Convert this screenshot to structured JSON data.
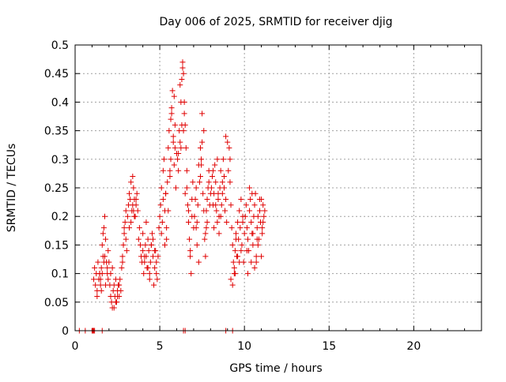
{
  "chart_data": {
    "type": "scatter",
    "title": "Day 006 of 2025, SRMTID for receiver djig",
    "xlabel": "GPS time / hours",
    "ylabel": "SRMTID / TECUs",
    "xlim": [
      0,
      24
    ],
    "ylim": [
      0,
      0.5
    ],
    "xticks": [
      "0",
      "5",
      "10",
      "15",
      "20"
    ],
    "yticks": [
      "0",
      "0.05",
      "0.1",
      "0.15",
      "0.2",
      "0.25",
      "0.3",
      "0.35",
      "0.4",
      "0.45",
      "0.5"
    ],
    "grid": true,
    "marker": "plus",
    "color": "#e00000",
    "series": [
      {
        "x": [
          0.25,
          0.6,
          1.0,
          1.05,
          1.1,
          1.15,
          1.6,
          6.4,
          6.5,
          8.9,
          9.3,
          1.1,
          1.15,
          1.2,
          1.25,
          1.3,
          1.35,
          1.4,
          1.45,
          1.5,
          1.55,
          1.6,
          1.65,
          1.7,
          1.75,
          1.8,
          1.85,
          1.9,
          1.95,
          1.3,
          1.5,
          1.7,
          1.9,
          1.6,
          1.8,
          1.55,
          1.75,
          1.95,
          1.45,
          1.65,
          2.0,
          2.05,
          2.1,
          2.15,
          2.2,
          2.25,
          2.3,
          2.35,
          2.4,
          2.45,
          2.5,
          2.55,
          2.6,
          2.65,
          2.7,
          2.1,
          2.3,
          2.5,
          2.2,
          2.4,
          2.6,
          2.75,
          2.8,
          2.85,
          2.9,
          2.95,
          3.0,
          3.05,
          3.1,
          2.8,
          2.9,
          3.0,
          3.15,
          3.2,
          3.25,
          3.3,
          3.35,
          3.4,
          3.45,
          3.5,
          3.55,
          3.6,
          3.65,
          3.7,
          3.3,
          3.5,
          3.4,
          3.6,
          3.2,
          3.45,
          3.75,
          3.8,
          3.85,
          3.9,
          3.95,
          4.0,
          4.05,
          4.1,
          4.15,
          4.2,
          4.25,
          4.3,
          4.35,
          4.4,
          4.45,
          4.5,
          4.55,
          4.6,
          4.65,
          4.7,
          4.75,
          4.8,
          4.85,
          4.9,
          4.0,
          4.2,
          4.4,
          4.6,
          4.8,
          4.1,
          4.3,
          4.5,
          4.7,
          4.95,
          5.0,
          5.05,
          5.1,
          5.15,
          5.2,
          5.25,
          5.3,
          5.35,
          5.4,
          5.45,
          5.5,
          5.55,
          5.6,
          5.65,
          5.7,
          5.75,
          5.8,
          5.85,
          5.9,
          5.95,
          6.0,
          5.2,
          5.4,
          5.6,
          5.8,
          5.3,
          5.5,
          5.7,
          5.9,
          5.1,
          5.35,
          5.65,
          5.85,
          6.05,
          6.1,
          6.15,
          6.2,
          6.25,
          6.3,
          6.35,
          6.4,
          6.45,
          6.5,
          6.55,
          6.6,
          6.65,
          6.7,
          6.75,
          6.8,
          6.85,
          6.9,
          6.95,
          7.0,
          6.2,
          6.3,
          6.35,
          6.25,
          6.4,
          6.6,
          6.8,
          6.5,
          6.7,
          6.1,
          6.45,
          6.9,
          7.05,
          7.1,
          7.15,
          7.2,
          7.25,
          7.3,
          7.35,
          7.4,
          7.45,
          7.5,
          7.55,
          7.6,
          7.65,
          7.7,
          7.75,
          7.8,
          7.85,
          7.9,
          7.95,
          8.0,
          7.2,
          7.4,
          7.6,
          7.8,
          7.3,
          7.5,
          7.7,
          7.9,
          7.15,
          7.45,
          7.75,
          8.05,
          8.1,
          8.15,
          8.2,
          8.25,
          8.3,
          8.35,
          8.4,
          8.45,
          8.5,
          8.55,
          8.6,
          8.65,
          8.7,
          8.75,
          8.8,
          8.85,
          8.9,
          8.95,
          9.0,
          8.2,
          8.4,
          8.6,
          8.8,
          8.3,
          8.5,
          8.7,
          8.9,
          8.15,
          8.45,
          9.05,
          9.1,
          9.15,
          9.2,
          9.25,
          9.3,
          9.35,
          9.4,
          9.45,
          9.5,
          9.55,
          9.6,
          9.65,
          9.7,
          9.75,
          9.8,
          9.85,
          9.9,
          9.95,
          10.0,
          9.2,
          9.4,
          9.6,
          9.8,
          9.3,
          9.5,
          9.7,
          9.9,
          9.15,
          9.45,
          10.05,
          10.1,
          10.15,
          10.2,
          10.25,
          10.3,
          10.35,
          10.4,
          10.45,
          10.5,
          10.55,
          10.6,
          10.65,
          10.7,
          10.75,
          10.8,
          10.85,
          10.9,
          10.95,
          11.0,
          11.05,
          11.1,
          11.15,
          11.2,
          10.2,
          10.4,
          10.6,
          10.8,
          11.0,
          10.3,
          10.5,
          10.7,
          10.9,
          11.1,
          10.15,
          10.45,
          10.75,
          11.05
        ],
        "y": [
          0.0,
          0.0,
          0.0,
          0.0,
          0.0,
          0.0,
          0.0,
          0.0,
          0.0,
          0.0,
          0.0,
          0.09,
          0.11,
          0.08,
          0.1,
          0.07,
          0.12,
          0.09,
          0.1,
          0.08,
          0.11,
          0.1,
          0.13,
          0.18,
          0.2,
          0.16,
          0.12,
          0.1,
          0.14,
          0.06,
          0.09,
          0.12,
          0.11,
          0.15,
          0.08,
          0.07,
          0.13,
          0.09,
          0.1,
          0.17,
          0.12,
          0.08,
          0.06,
          0.05,
          0.04,
          0.07,
          0.08,
          0.06,
          0.09,
          0.05,
          0.07,
          0.08,
          0.06,
          0.09,
          0.07,
          0.1,
          0.04,
          0.06,
          0.11,
          0.05,
          0.08,
          0.11,
          0.13,
          0.15,
          0.17,
          0.19,
          0.16,
          0.14,
          0.2,
          0.12,
          0.18,
          0.21,
          0.22,
          0.24,
          0.23,
          0.26,
          0.21,
          0.22,
          0.25,
          0.23,
          0.2,
          0.22,
          0.24,
          0.21,
          0.19,
          0.2,
          0.27,
          0.23,
          0.18,
          0.21,
          0.16,
          0.18,
          0.15,
          0.13,
          0.12,
          0.14,
          0.1,
          0.12,
          0.15,
          0.13,
          0.11,
          0.16,
          0.14,
          0.1,
          0.12,
          0.15,
          0.17,
          0.13,
          0.08,
          0.11,
          0.14,
          0.12,
          0.09,
          0.13,
          0.17,
          0.19,
          0.09,
          0.16,
          0.1,
          0.13,
          0.11,
          0.15,
          0.14,
          0.18,
          0.2,
          0.22,
          0.25,
          0.19,
          0.28,
          0.3,
          0.21,
          0.24,
          0.16,
          0.26,
          0.32,
          0.35,
          0.27,
          0.3,
          0.38,
          0.42,
          0.33,
          0.29,
          0.36,
          0.25,
          0.31,
          0.23,
          0.18,
          0.28,
          0.34,
          0.15,
          0.21,
          0.39,
          0.32,
          0.17,
          0.24,
          0.37,
          0.41,
          0.3,
          0.28,
          0.35,
          0.33,
          0.4,
          0.44,
          0.47,
          0.45,
          0.38,
          0.36,
          0.32,
          0.25,
          0.22,
          0.19,
          0.16,
          0.13,
          0.1,
          0.2,
          0.26,
          0.18,
          0.43,
          0.36,
          0.46,
          0.32,
          0.35,
          0.28,
          0.14,
          0.24,
          0.21,
          0.31,
          0.4,
          0.23,
          0.2,
          0.23,
          0.25,
          0.19,
          0.22,
          0.29,
          0.26,
          0.32,
          0.3,
          0.38,
          0.24,
          0.21,
          0.16,
          0.13,
          0.18,
          0.23,
          0.25,
          0.28,
          0.22,
          0.24,
          0.15,
          0.27,
          0.35,
          0.19,
          0.12,
          0.33,
          0.17,
          0.26,
          0.18,
          0.29,
          0.21,
          0.25,
          0.27,
          0.22,
          0.24,
          0.29,
          0.26,
          0.21,
          0.19,
          0.23,
          0.2,
          0.25,
          0.28,
          0.22,
          0.24,
          0.3,
          0.27,
          0.21,
          0.23,
          0.19,
          0.33,
          0.18,
          0.3,
          0.2,
          0.25,
          0.22,
          0.17,
          0.26,
          0.34,
          0.28,
          0.24,
          0.28,
          0.32,
          0.26,
          0.22,
          0.18,
          0.15,
          0.12,
          0.1,
          0.14,
          0.17,
          0.13,
          0.19,
          0.16,
          0.21,
          0.18,
          0.23,
          0.15,
          0.2,
          0.12,
          0.17,
          0.09,
          0.11,
          0.13,
          0.14,
          0.08,
          0.16,
          0.12,
          0.19,
          0.3,
          0.1,
          0.2,
          0.22,
          0.18,
          0.16,
          0.14,
          0.21,
          0.23,
          0.19,
          0.17,
          0.15,
          0.2,
          0.22,
          0.24,
          0.13,
          0.18,
          0.2,
          0.16,
          0.21,
          0.19,
          0.23,
          0.17,
          0.22,
          0.2,
          0.21,
          0.1,
          0.12,
          0.11,
          0.15,
          0.13,
          0.25,
          0.17,
          0.12,
          0.23,
          0.19,
          0.14,
          0.24,
          0.16,
          0.18
        ]
      }
    ]
  }
}
